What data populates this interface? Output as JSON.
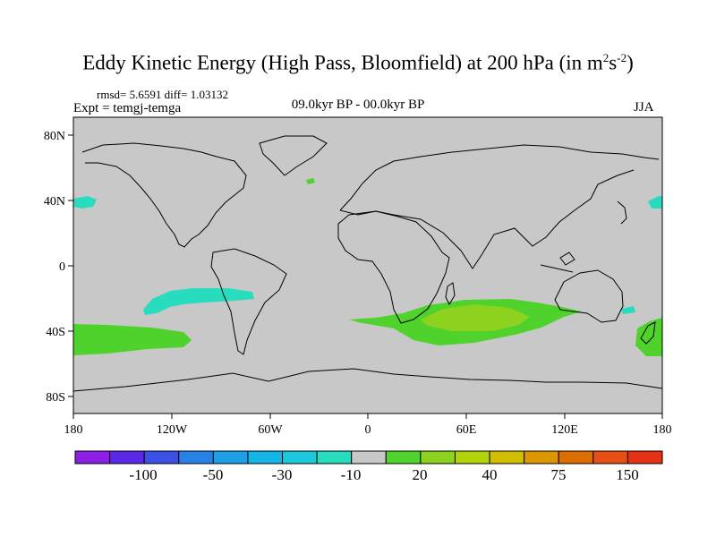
{
  "title": "Eddy Kinetic Energy (High Pass, Bloomfield) at 200 hPa (in m",
  "title_sup1": "2",
  "title_s": "s",
  "title_sup2": "-2",
  "title_close": ")",
  "stats": "rmsd= 5.6591 diff= 1.03132",
  "expt": "Expt = temgj-temga",
  "period": "09.0kyr BP - 00.0kyr BP",
  "season": "JJA",
  "lat_labels": [
    "80N",
    "40N",
    "0",
    "40S",
    "80S"
  ],
  "lon_labels": [
    "180",
    "120W",
    "60W",
    "0",
    "60E",
    "120E",
    "180"
  ],
  "colorbar": {
    "colors": [
      "#8c1ee6",
      "#5a28e6",
      "#3c50e6",
      "#2882e6",
      "#1ea0e6",
      "#14b4e6",
      "#1ec8dc",
      "#28dcbe",
      "#c8c8c8",
      "#50d22d",
      "#8cd21e",
      "#b4d20a",
      "#d2be00",
      "#dc9600",
      "#dc6e00",
      "#e65014",
      "#e63214"
    ],
    "labels": [
      "-100",
      "-50",
      "-30",
      "-10",
      "20",
      "40",
      "75",
      "150"
    ]
  },
  "colors": {
    "land_ocean": "#c8c8c8",
    "cyan": "#28dcbe",
    "green": "#50d22d",
    "yellowgreen": "#8cd21e"
  }
}
